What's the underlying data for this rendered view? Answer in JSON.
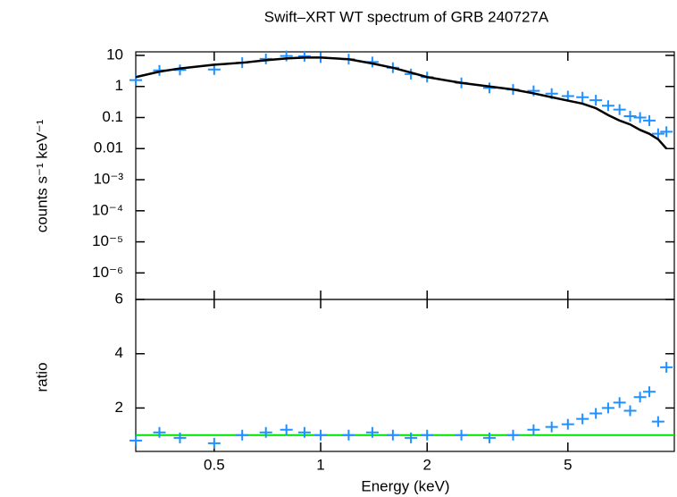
{
  "chart_data": [
    {
      "type": "scatter",
      "title": "Swift–XRT WT spectrum of GRB 240727A",
      "y_label": "counts s⁻¹ keV⁻¹",
      "x": [
        0.3,
        0.35,
        0.4,
        0.5,
        0.6,
        0.7,
        0.8,
        0.9,
        1.0,
        1.2,
        1.4,
        1.6,
        1.8,
        2.0,
        2.5,
        3,
        3.5,
        4,
        4.5,
        5,
        5.5,
        6,
        6.5,
        7,
        7.5,
        8,
        8.5,
        9,
        9.5
      ],
      "series": [
        {
          "kind": "points",
          "color": "#1e90ff",
          "values": [
            1.6,
            3.3,
            3.4,
            3.5,
            5.8,
            7.7,
            9.6,
            9.4,
            8.5,
            7.5,
            6.1,
            4,
            2.5,
            2,
            1.3,
            0.9,
            0.8,
            0.72,
            0.59,
            0.49,
            0.45,
            0.36,
            0.24,
            0.18,
            0.11,
            0.1,
            0.08,
            0.03,
            0.035
          ]
        },
        {
          "kind": "step",
          "color": "#000000",
          "values": [
            2,
            3,
            3.8,
            5,
            5.8,
            7,
            8,
            8.5,
            8.5,
            7.5,
            5.5,
            4,
            2.8,
            2,
            1.3,
            1.0,
            0.8,
            0.6,
            0.45,
            0.35,
            0.28,
            0.2,
            0.12,
            0.08,
            0.06,
            0.04,
            0.03,
            0.02,
            0.01
          ]
        }
      ],
      "xlim": [
        0.3,
        10
      ],
      "x_log": true,
      "xticks": [
        0.5,
        1,
        2,
        5
      ],
      "ylim": [
        1.4e-07,
        13
      ],
      "y_log": true,
      "yticks": [
        10,
        1,
        0.1,
        0.01,
        {
          "value": 0.001,
          "label": "10⁻³"
        },
        {
          "value": 0.0001,
          "label": "10⁻⁴"
        },
        {
          "value": 1e-05,
          "label": "10⁻⁵"
        },
        {
          "value": 1e-06,
          "label": "10⁻⁶"
        }
      ]
    },
    {
      "type": "scatter",
      "x_label": "Energy (keV)",
      "y_label": "ratio",
      "x": [
        0.3,
        0.35,
        0.4,
        0.5,
        0.6,
        0.7,
        0.8,
        0.9,
        1.0,
        1.2,
        1.4,
        1.6,
        1.8,
        2.0,
        2.5,
        3,
        3.5,
        4,
        4.5,
        5,
        5.5,
        6,
        6.5,
        7,
        7.5,
        8,
        8.5,
        9,
        9.5
      ],
      "series": [
        {
          "kind": "points",
          "color": "#1e90ff",
          "values": [
            0.8,
            1.1,
            0.9,
            0.7,
            1.0,
            1.1,
            1.2,
            1.1,
            1.0,
            1.0,
            1.1,
            1.0,
            0.9,
            1.0,
            1.0,
            0.9,
            1.0,
            1.2,
            1.3,
            1.4,
            1.6,
            1.8,
            2.0,
            2.2,
            1.9,
            2.4,
            2.6,
            1.5,
            3.5
          ]
        }
      ],
      "reference_line": 1,
      "reference_color": "#00e000",
      "xlim": [
        0.3,
        10
      ],
      "x_log": true,
      "xticks": [
        0.5,
        1,
        2,
        5
      ],
      "ylim": [
        0.4,
        6
      ],
      "yticks": [
        2,
        4,
        6
      ]
    }
  ]
}
